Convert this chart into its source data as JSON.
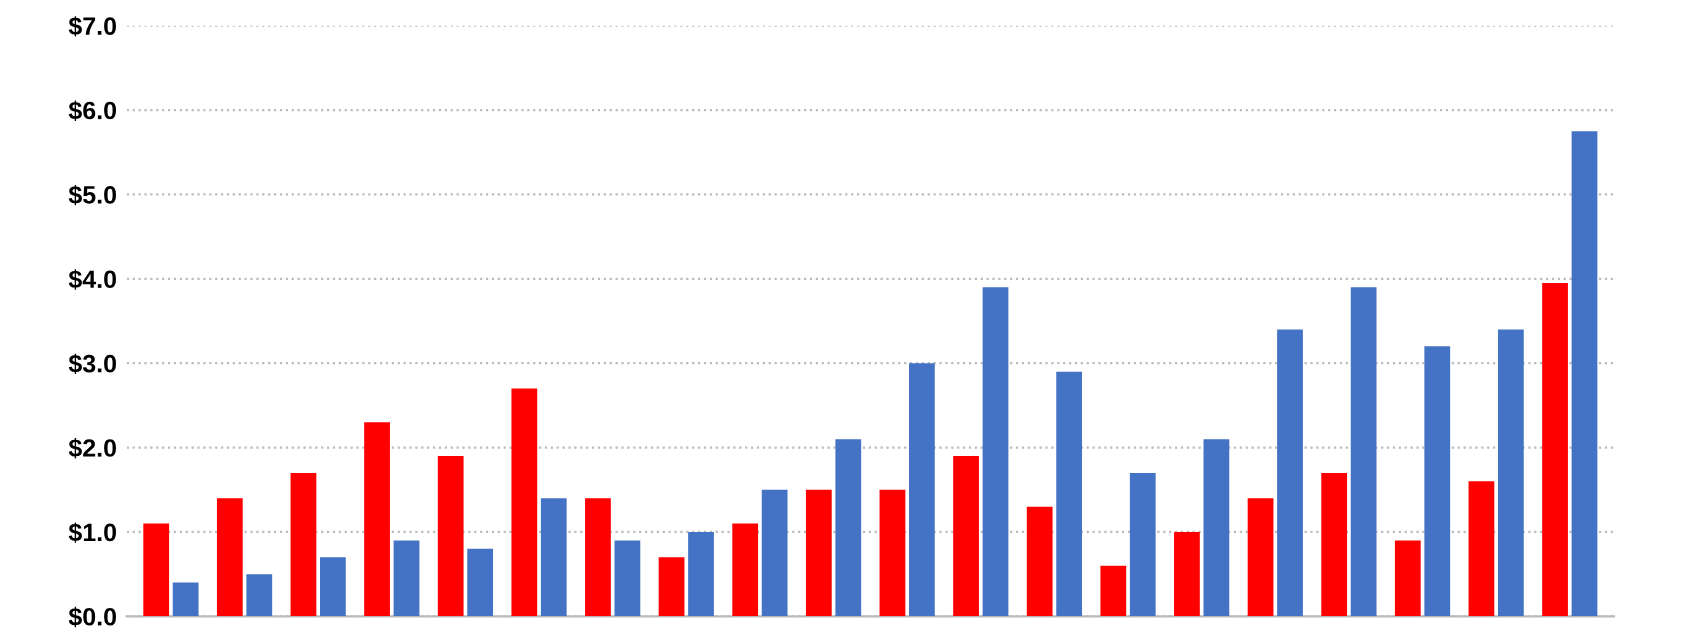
{
  "chart_data": {
    "type": "bar",
    "categories": [
      null,
      null,
      null,
      null,
      null,
      null,
      null,
      null,
      null,
      null,
      null,
      null,
      null,
      null,
      null,
      null,
      null,
      null,
      null,
      null
    ],
    "series": [
      {
        "color": "#ff0000",
        "values": [
          1.1,
          1.4,
          1.7,
          2.3,
          1.9,
          2.7,
          1.4,
          0.7,
          1.1,
          1.5,
          1.5,
          1.9,
          1.3,
          0.6,
          1.0,
          1.4,
          1.7,
          0.9,
          1.6,
          3.95
        ]
      },
      {
        "color": "#4472c4",
        "values": [
          0.4,
          0.5,
          0.7,
          0.9,
          0.8,
          1.4,
          0.9,
          1.0,
          1.5,
          2.1,
          3.0,
          3.9,
          2.9,
          1.7,
          2.1,
          3.4,
          3.9,
          3.2,
          3.4,
          5.75
        ]
      }
    ],
    "ylim": [
      0,
      7
    ],
    "yticks": [
      {
        "value": 0,
        "label": "$0.0"
      },
      {
        "value": 1,
        "label": "$1.0"
      },
      {
        "value": 2,
        "label": "$2.0"
      },
      {
        "value": 3,
        "label": "$3.0"
      },
      {
        "value": 4,
        "label": "$4.0"
      },
      {
        "value": 5,
        "label": "$5.0"
      },
      {
        "value": 6,
        "label": "$6.0"
      },
      {
        "value": 7,
        "label": "$7.0"
      }
    ],
    "grid": "y"
  }
}
